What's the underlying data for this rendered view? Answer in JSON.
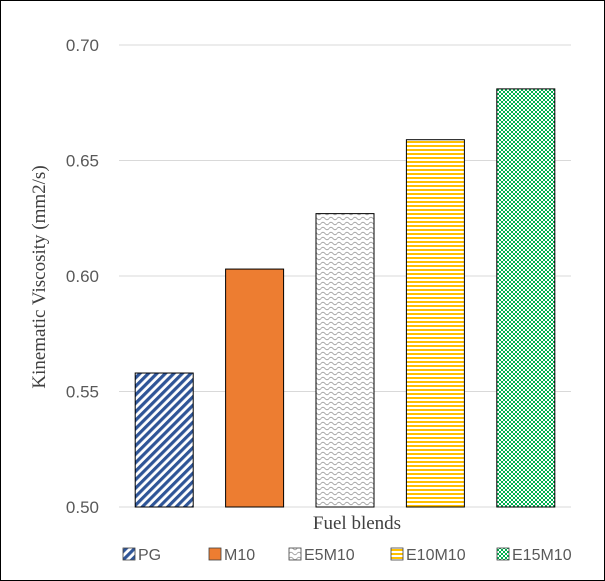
{
  "chart_data": {
    "type": "bar",
    "categories": [
      "PG",
      "M10",
      "E5M10",
      "E10M10",
      "E15M10"
    ],
    "values": [
      0.558,
      0.603,
      0.627,
      0.659,
      0.681
    ],
    "xlabel": "Fuel blends",
    "ylabel": "Kinematic Viscosity (mm2/s)",
    "ylim": [
      0.5,
      0.7
    ],
    "yticks": [
      "0.50",
      "0.55",
      "0.60",
      "0.65",
      "0.70"
    ],
    "grid": true,
    "legend_position": "bottom",
    "legend": [
      "PG",
      "M10",
      "E5M10",
      "E10M10",
      "E15M10"
    ],
    "colors": [
      "#2f5597",
      "#ed7d31",
      "#a5a5a5",
      "#ffc000",
      "#00b050"
    ],
    "patterns": [
      "diagonal-stripes",
      "solid",
      "wave",
      "horizontal-stripes",
      "checkerboard"
    ]
  }
}
